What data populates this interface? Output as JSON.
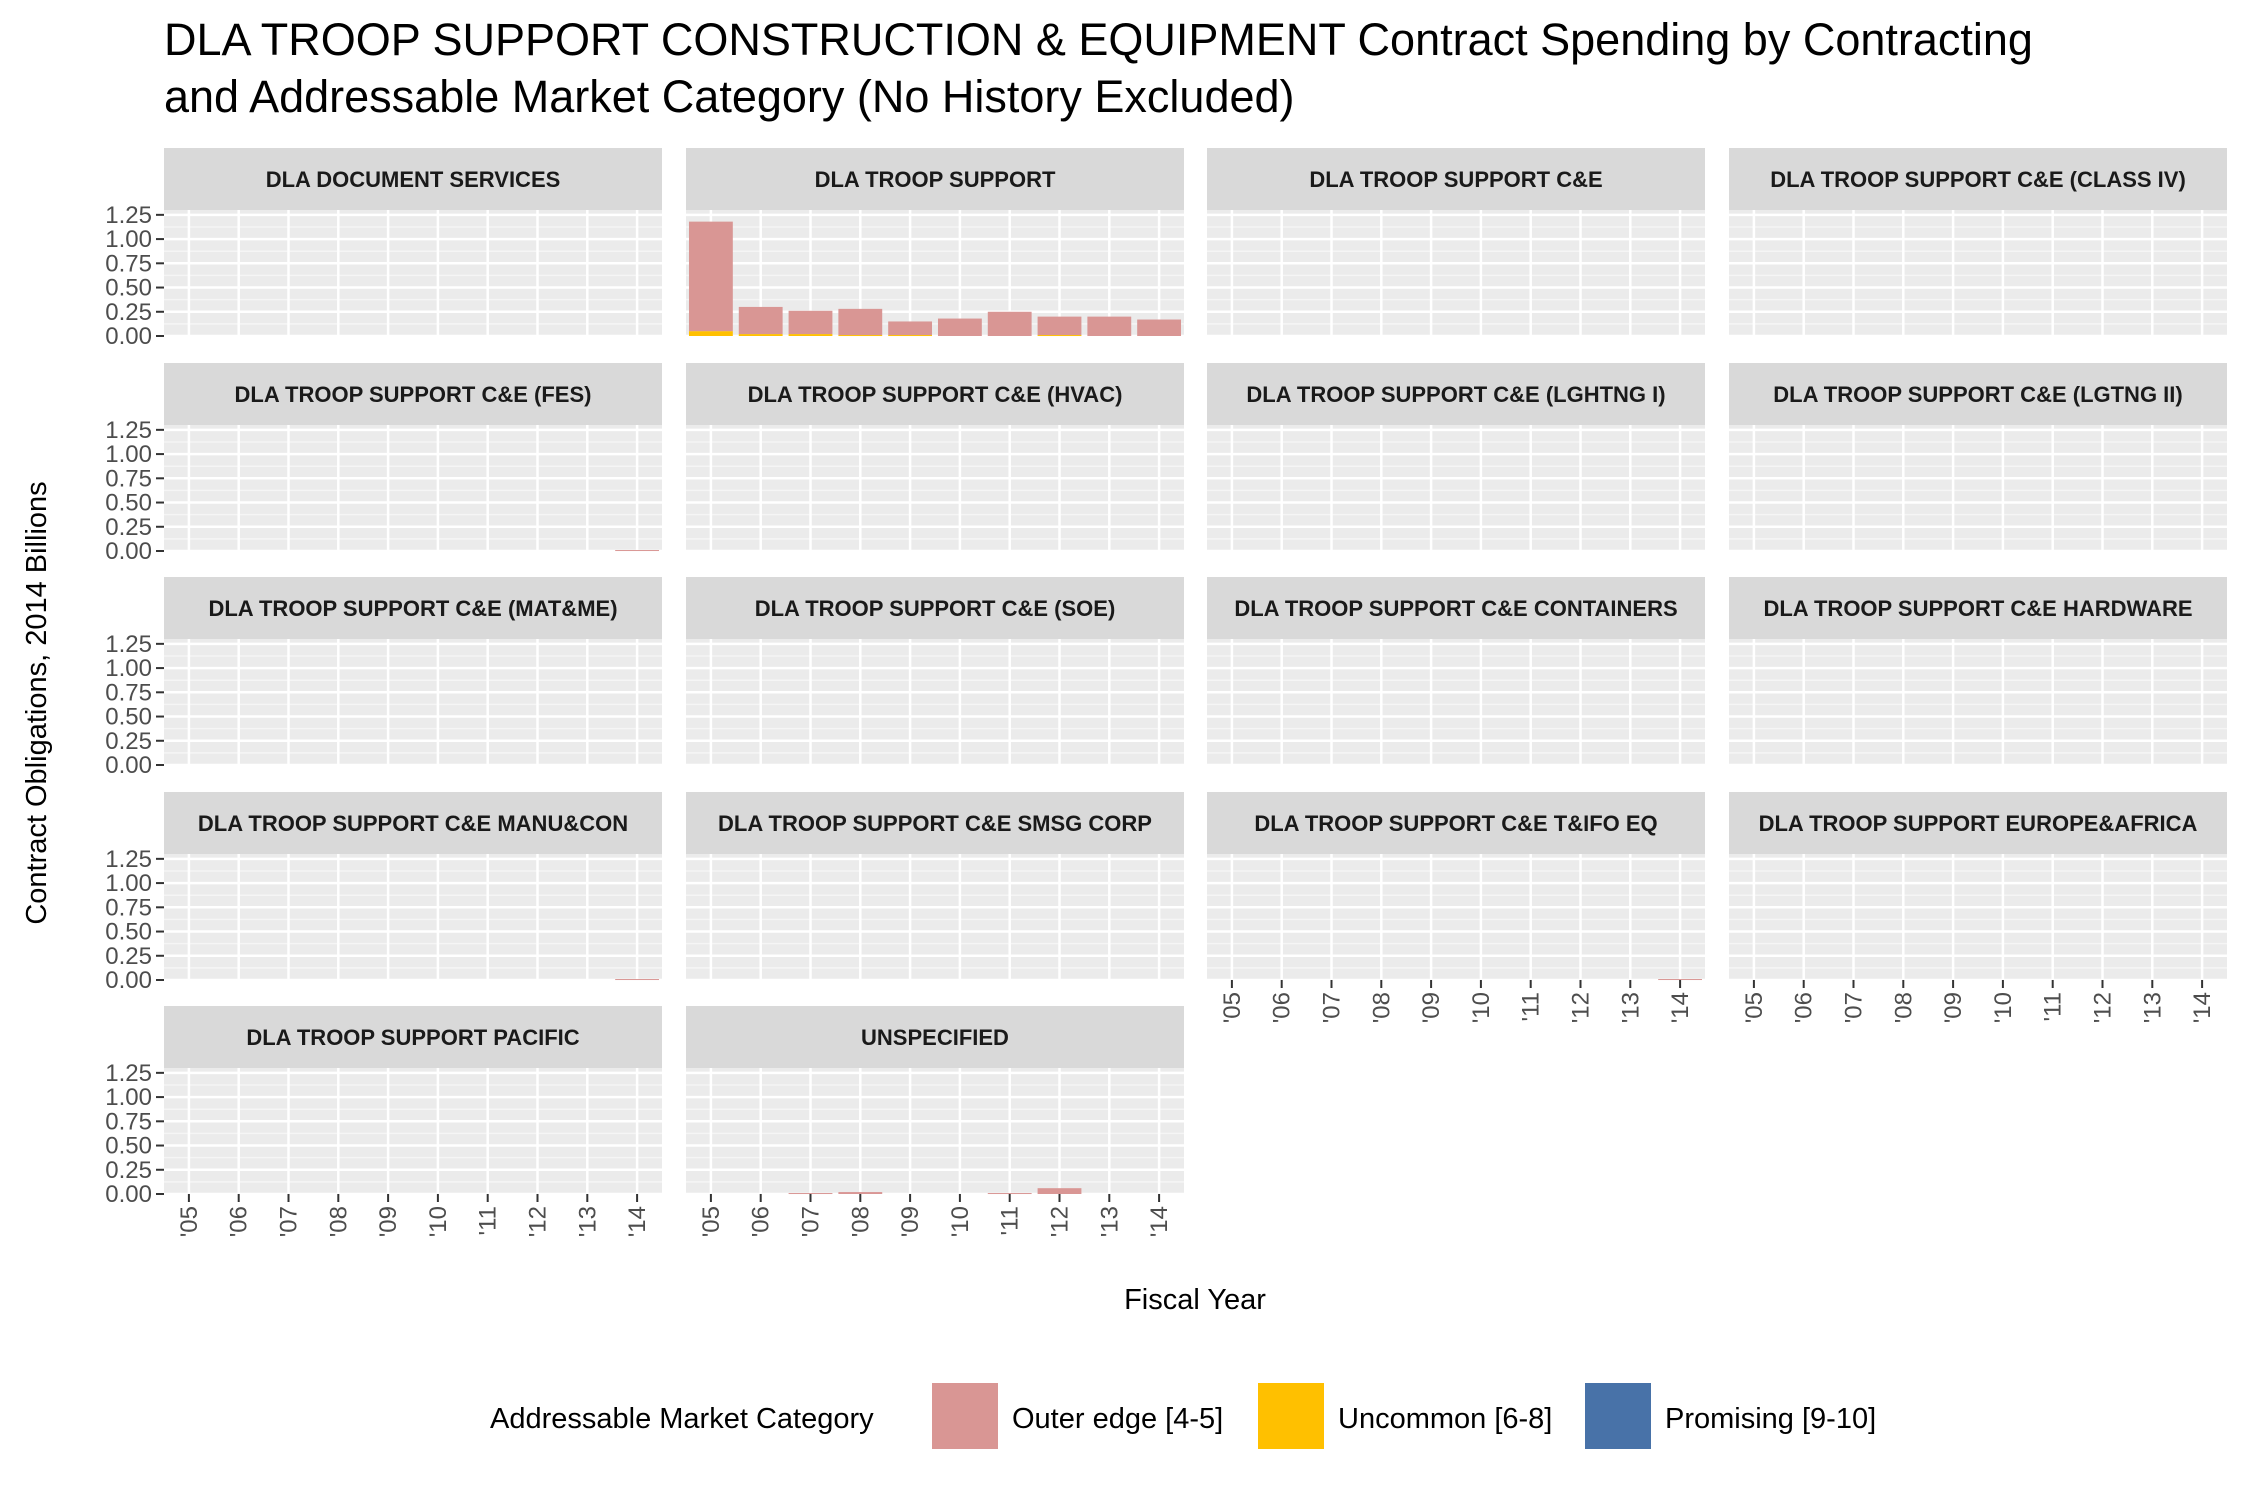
{
  "chart_data": {
    "type": "bar",
    "stacked": true,
    "faceted": true,
    "title_lines": [
      "DLA TROOP SUPPORT CONSTRUCTION & EQUIPMENT Contract Spending by Contracting",
      "and Addressable Market Category (No History Excluded)"
    ],
    "xlabel": "Fiscal Year",
    "ylabel": "Contract Obligations, 2014 Billions",
    "x": [
      "'05",
      "'06",
      "'07",
      "'08",
      "'09",
      "'10",
      "'11",
      "'12",
      "'13",
      "'14"
    ],
    "y_ticks": [
      "0.00",
      "0.25",
      "0.50",
      "0.75",
      "1.00",
      "1.25"
    ],
    "ylim": [
      0,
      1.3
    ],
    "grid": true,
    "legend": {
      "title": "Addressable Market Category",
      "position": "bottom",
      "items": [
        {
          "label": "Outer edge [4-5]",
          "color": "#D99694"
        },
        {
          "label": "Uncommon [6-8]",
          "color": "#FFC000"
        },
        {
          "label": "Promising [9-10]",
          "color": "#4872A8"
        }
      ]
    },
    "panels": [
      {
        "name": "DLA DOCUMENT SERVICES",
        "series": [
          {
            "name": "Outer edge [4-5]",
            "values": [
              0,
              0,
              0,
              0,
              0,
              0,
              0,
              0,
              0,
              0
            ]
          },
          {
            "name": "Uncommon [6-8]",
            "values": [
              0,
              0,
              0,
              0,
              0,
              0,
              0,
              0,
              0,
              0
            ]
          },
          {
            "name": "Promising [9-10]",
            "values": [
              0,
              0,
              0,
              0,
              0,
              0,
              0,
              0,
              0,
              0
            ]
          }
        ]
      },
      {
        "name": "DLA TROOP SUPPORT",
        "series": [
          {
            "name": "Outer edge [4-5]",
            "values": [
              1.13,
              0.28,
              0.24,
              0.27,
              0.14,
              0.18,
              0.25,
              0.19,
              0.2,
              0.17
            ]
          },
          {
            "name": "Uncommon [6-8]",
            "values": [
              0.05,
              0.02,
              0.02,
              0.01,
              0.01,
              0.0,
              0.0,
              0.01,
              0.0,
              0.0
            ]
          },
          {
            "name": "Promising [9-10]",
            "values": [
              0,
              0,
              0,
              0,
              0,
              0,
              0,
              0,
              0,
              0
            ]
          }
        ]
      },
      {
        "name": "DLA TROOP SUPPORT C&E",
        "series": [
          {
            "name": "Outer edge [4-5]",
            "values": [
              0,
              0,
              0,
              0,
              0,
              0,
              0,
              0,
              0,
              0
            ]
          },
          {
            "name": "Uncommon [6-8]",
            "values": [
              0,
              0,
              0,
              0,
              0,
              0,
              0,
              0,
              0,
              0
            ]
          },
          {
            "name": "Promising [9-10]",
            "values": [
              0,
              0,
              0,
              0,
              0,
              0,
              0,
              0,
              0,
              0
            ]
          }
        ]
      },
      {
        "name": "DLA TROOP SUPPORT C&E (CLASS IV)",
        "series": [
          {
            "name": "Outer edge [4-5]",
            "values": [
              0,
              0,
              0,
              0,
              0,
              0,
              0,
              0,
              0,
              0
            ]
          },
          {
            "name": "Uncommon [6-8]",
            "values": [
              0,
              0,
              0,
              0,
              0,
              0,
              0,
              0,
              0,
              0
            ]
          },
          {
            "name": "Promising [9-10]",
            "values": [
              0,
              0,
              0,
              0,
              0,
              0,
              0,
              0,
              0,
              0
            ]
          }
        ]
      },
      {
        "name": "DLA TROOP SUPPORT C&E (FES)",
        "series": [
          {
            "name": "Outer edge [4-5]",
            "values": [
              0,
              0,
              0,
              0,
              0,
              0,
              0,
              0,
              0,
              0.01
            ]
          },
          {
            "name": "Uncommon [6-8]",
            "values": [
              0,
              0,
              0,
              0,
              0,
              0,
              0,
              0,
              0,
              0
            ]
          },
          {
            "name": "Promising [9-10]",
            "values": [
              0,
              0,
              0,
              0,
              0,
              0,
              0,
              0,
              0,
              0
            ]
          }
        ]
      },
      {
        "name": "DLA TROOP SUPPORT C&E (HVAC)",
        "series": [
          {
            "name": "Outer edge [4-5]",
            "values": [
              0,
              0,
              0,
              0,
              0,
              0,
              0,
              0,
              0,
              0
            ]
          },
          {
            "name": "Uncommon [6-8]",
            "values": [
              0,
              0,
              0,
              0,
              0,
              0,
              0,
              0,
              0,
              0
            ]
          },
          {
            "name": "Promising [9-10]",
            "values": [
              0,
              0,
              0,
              0,
              0,
              0,
              0,
              0,
              0,
              0
            ]
          }
        ]
      },
      {
        "name": "DLA TROOP SUPPORT C&E (LGHTNG I)",
        "series": [
          {
            "name": "Outer edge [4-5]",
            "values": [
              0,
              0,
              0,
              0,
              0,
              0,
              0,
              0,
              0,
              0
            ]
          },
          {
            "name": "Uncommon [6-8]",
            "values": [
              0,
              0,
              0,
              0,
              0,
              0,
              0,
              0,
              0,
              0
            ]
          },
          {
            "name": "Promising [9-10]",
            "values": [
              0,
              0,
              0,
              0,
              0,
              0,
              0,
              0,
              0,
              0
            ]
          }
        ]
      },
      {
        "name": "DLA TROOP SUPPORT C&E (LGTNG II)",
        "series": [
          {
            "name": "Outer edge [4-5]",
            "values": [
              0,
              0,
              0,
              0,
              0,
              0,
              0,
              0,
              0,
              0
            ]
          },
          {
            "name": "Uncommon [6-8]",
            "values": [
              0,
              0,
              0,
              0,
              0,
              0,
              0,
              0,
              0,
              0
            ]
          },
          {
            "name": "Promising [9-10]",
            "values": [
              0,
              0,
              0,
              0,
              0,
              0,
              0,
              0,
              0,
              0
            ]
          }
        ]
      },
      {
        "name": "DLA TROOP SUPPORT C&E (MAT&ME)",
        "series": [
          {
            "name": "Outer edge [4-5]",
            "values": [
              0,
              0,
              0,
              0,
              0,
              0,
              0,
              0,
              0,
              0
            ]
          },
          {
            "name": "Uncommon [6-8]",
            "values": [
              0,
              0,
              0,
              0,
              0,
              0,
              0,
              0,
              0,
              0
            ]
          },
          {
            "name": "Promising [9-10]",
            "values": [
              0,
              0,
              0,
              0,
              0,
              0,
              0,
              0,
              0,
              0
            ]
          }
        ]
      },
      {
        "name": "DLA TROOP SUPPORT C&E (SOE)",
        "series": [
          {
            "name": "Outer edge [4-5]",
            "values": [
              0,
              0,
              0,
              0,
              0,
              0,
              0,
              0,
              0,
              0
            ]
          },
          {
            "name": "Uncommon [6-8]",
            "values": [
              0,
              0,
              0,
              0,
              0,
              0,
              0,
              0,
              0,
              0
            ]
          },
          {
            "name": "Promising [9-10]",
            "values": [
              0,
              0,
              0,
              0,
              0,
              0,
              0,
              0,
              0,
              0
            ]
          }
        ]
      },
      {
        "name": "DLA TROOP SUPPORT C&E CONTAINERS",
        "series": [
          {
            "name": "Outer edge [4-5]",
            "values": [
              0,
              0,
              0,
              0,
              0,
              0,
              0,
              0,
              0,
              0
            ]
          },
          {
            "name": "Uncommon [6-8]",
            "values": [
              0,
              0,
              0,
              0,
              0,
              0,
              0,
              0,
              0,
              0
            ]
          },
          {
            "name": "Promising [9-10]",
            "values": [
              0,
              0,
              0,
              0,
              0,
              0,
              0,
              0,
              0,
              0
            ]
          }
        ]
      },
      {
        "name": "DLA TROOP SUPPORT C&E HARDWARE",
        "series": [
          {
            "name": "Outer edge [4-5]",
            "values": [
              0,
              0,
              0,
              0,
              0,
              0,
              0,
              0,
              0,
              0
            ]
          },
          {
            "name": "Uncommon [6-8]",
            "values": [
              0,
              0,
              0,
              0,
              0,
              0,
              0,
              0,
              0,
              0
            ]
          },
          {
            "name": "Promising [9-10]",
            "values": [
              0,
              0,
              0,
              0,
              0,
              0,
              0,
              0,
              0,
              0
            ]
          }
        ]
      },
      {
        "name": "DLA TROOP SUPPORT C&E MANU&CON",
        "series": [
          {
            "name": "Outer edge [4-5]",
            "values": [
              0,
              0,
              0,
              0,
              0,
              0,
              0,
              0,
              0,
              0.01
            ]
          },
          {
            "name": "Uncommon [6-8]",
            "values": [
              0,
              0,
              0,
              0,
              0,
              0,
              0,
              0,
              0,
              0
            ]
          },
          {
            "name": "Promising [9-10]",
            "values": [
              0,
              0,
              0,
              0,
              0,
              0,
              0,
              0,
              0,
              0
            ]
          }
        ]
      },
      {
        "name": "DLA TROOP SUPPORT C&E SMSG CORP",
        "series": [
          {
            "name": "Outer edge [4-5]",
            "values": [
              0,
              0,
              0,
              0,
              0,
              0,
              0,
              0,
              0,
              0
            ]
          },
          {
            "name": "Uncommon [6-8]",
            "values": [
              0,
              0,
              0,
              0,
              0,
              0,
              0,
              0,
              0,
              0
            ]
          },
          {
            "name": "Promising [9-10]",
            "values": [
              0,
              0,
              0,
              0,
              0,
              0,
              0,
              0,
              0,
              0
            ]
          }
        ]
      },
      {
        "name": "DLA TROOP SUPPORT C&E T&IFO EQ",
        "series": [
          {
            "name": "Outer edge [4-5]",
            "values": [
              0,
              0,
              0,
              0,
              0,
              0,
              0,
              0,
              0,
              0.01
            ]
          },
          {
            "name": "Uncommon [6-8]",
            "values": [
              0,
              0,
              0,
              0,
              0,
              0,
              0,
              0,
              0,
              0
            ]
          },
          {
            "name": "Promising [9-10]",
            "values": [
              0,
              0,
              0,
              0,
              0,
              0,
              0,
              0,
              0,
              0
            ]
          }
        ]
      },
      {
        "name": "DLA TROOP SUPPORT EUROPE&AFRICA",
        "series": [
          {
            "name": "Outer edge [4-5]",
            "values": [
              0,
              0,
              0,
              0,
              0,
              0,
              0,
              0,
              0,
              0
            ]
          },
          {
            "name": "Uncommon [6-8]",
            "values": [
              0,
              0,
              0,
              0,
              0,
              0,
              0,
              0,
              0,
              0
            ]
          },
          {
            "name": "Promising [9-10]",
            "values": [
              0,
              0,
              0,
              0,
              0,
              0,
              0,
              0,
              0,
              0
            ]
          }
        ]
      },
      {
        "name": "DLA TROOP SUPPORT PACIFIC",
        "series": [
          {
            "name": "Outer edge [4-5]",
            "values": [
              0,
              0,
              0,
              0,
              0,
              0,
              0,
              0,
              0,
              0
            ]
          },
          {
            "name": "Uncommon [6-8]",
            "values": [
              0,
              0,
              0,
              0,
              0,
              0,
              0,
              0,
              0,
              0
            ]
          },
          {
            "name": "Promising [9-10]",
            "values": [
              0,
              0,
              0,
              0,
              0,
              0,
              0,
              0,
              0,
              0
            ]
          }
        ]
      },
      {
        "name": "UNSPECIFIED",
        "series": [
          {
            "name": "Outer edge [4-5]",
            "values": [
              0,
              0,
              0.01,
              0.02,
              0,
              0,
              0.01,
              0.06,
              0,
              0
            ]
          },
          {
            "name": "Uncommon [6-8]",
            "values": [
              0,
              0,
              0,
              0,
              0,
              0,
              0,
              0,
              0,
              0
            ]
          },
          {
            "name": "Promising [9-10]",
            "values": [
              0,
              0,
              0,
              0,
              0,
              0,
              0,
              0,
              0,
              0
            ]
          }
        ]
      }
    ]
  }
}
